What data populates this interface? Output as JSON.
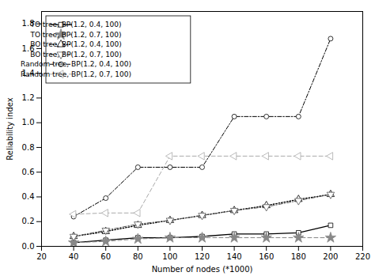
{
  "chart_data": {
    "type": "line",
    "xlabel": "Number of nodes (*1000)",
    "ylabel": "Reliability index",
    "x": [
      40,
      60,
      80,
      100,
      120,
      140,
      160,
      180,
      200
    ],
    "series": [
      {
        "name": "TO tree, BP(1.2, 0.4, 100)",
        "color": "#000000",
        "marker": "square",
        "line_style": "solid",
        "values": [
          0.03,
          0.05,
          0.07,
          0.07,
          0.08,
          0.1,
          0.1,
          0.11,
          0.17
        ]
      },
      {
        "name": "TO tree, BP(1.2, 0.7, 100)",
        "color": "#888888",
        "marker": "star",
        "line_style": "dashed",
        "values": [
          0.03,
          0.04,
          0.06,
          0.07,
          0.07,
          0.07,
          0.07,
          0.07,
          0.07
        ]
      },
      {
        "name": "BO tree, BP(1.2, 0.4, 100)",
        "color": "#000000",
        "marker": "triangle-up",
        "line_style": "dotted",
        "values": [
          0.08,
          0.12,
          0.17,
          0.21,
          0.25,
          0.29,
          0.33,
          0.38,
          0.42
        ]
      },
      {
        "name": "BO tree, BP(1.2, 0.7, 100)",
        "color": "#555555",
        "marker": "triangle-down",
        "line_style": "dashdot",
        "values": [
          0.08,
          0.13,
          0.18,
          0.21,
          0.25,
          0.29,
          0.32,
          0.37,
          0.42
        ]
      },
      {
        "name": "Random tree, BP(1.2, 0.4, 100)",
        "color": "#000000",
        "marker": "circle",
        "line_style": "dashdot",
        "values": [
          0.24,
          0.39,
          0.64,
          0.64,
          0.64,
          1.05,
          1.05,
          1.05,
          1.68
        ]
      },
      {
        "name": "Random tree, BP(1.2, 0.7, 100)",
        "color": "#aaaaaa",
        "marker": "triangle-left",
        "line_style": "dashed",
        "values": [
          0.26,
          0.27,
          0.27,
          0.73,
          0.73,
          0.73,
          0.73,
          0.73,
          0.73
        ]
      }
    ],
    "xlim": [
      20,
      220
    ],
    "ylim": [
      0,
      1.9
    ],
    "xticks": [
      20,
      40,
      60,
      80,
      100,
      120,
      140,
      160,
      180,
      200,
      220
    ],
    "yticks": [
      {
        "value": 0.0,
        "label": "0.0"
      },
      0.2,
      0.4,
      0.6,
      0.8,
      {
        "value": 1.0,
        "label": "1.0"
      },
      1.2,
      1.4,
      1.6,
      1.8
    ],
    "grid": false,
    "legend": "upper left"
  }
}
